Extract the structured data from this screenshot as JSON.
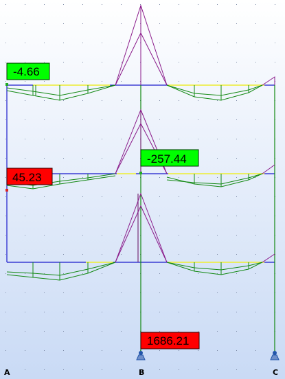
{
  "results": [
    {
      "text": "-4.66",
      "style": "green"
    },
    {
      "text": "45.23",
      "style": "red"
    },
    {
      "text": "-257.44",
      "style": "green"
    },
    {
      "text": "1686.21",
      "style": "red"
    }
  ],
  "axes": [
    {
      "text": "A"
    },
    {
      "text": "B"
    },
    {
      "text": "C"
    }
  ],
  "colors": {
    "background_top": "#ffffff",
    "background_bottom": "#c9daf5",
    "frame": "#1a1acc",
    "diagram": "#118811",
    "moment_peaks": "#8a1a8a",
    "zero_line": "#ffff33",
    "label_green": "#00ff00",
    "label_red": "#ff0000",
    "support": "#2255aa"
  }
}
